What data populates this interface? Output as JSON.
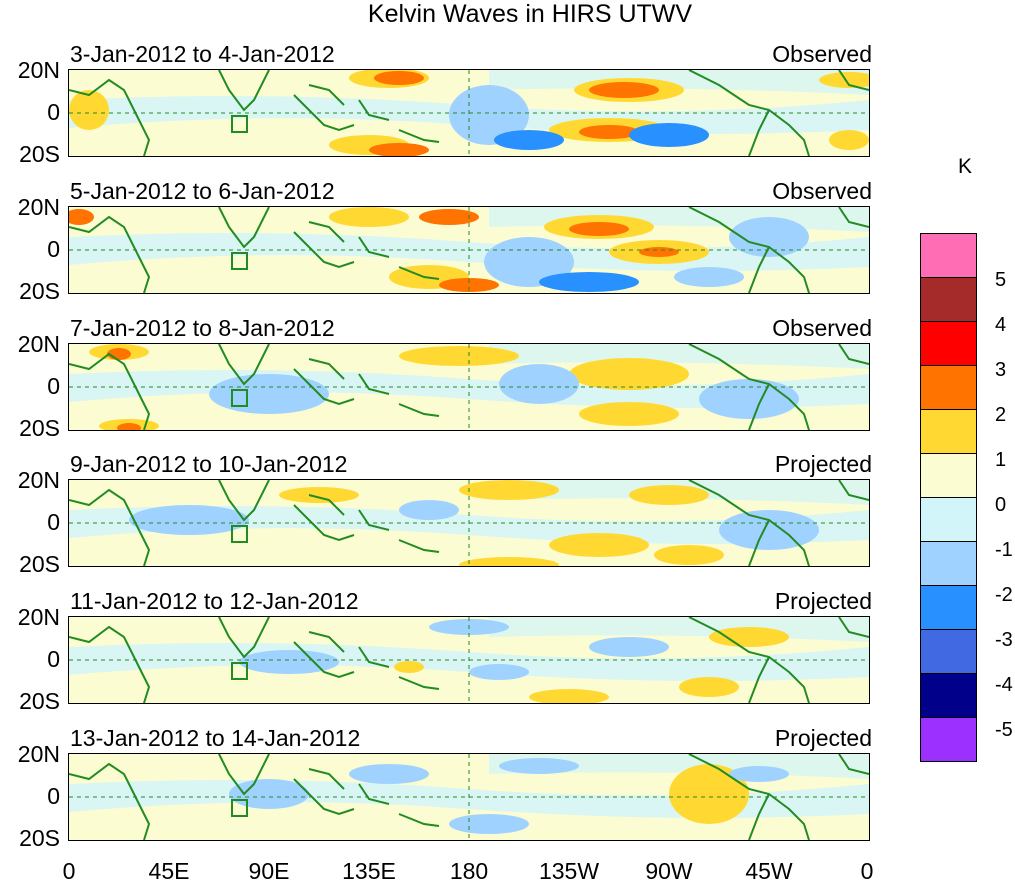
{
  "title": "Kelvin Waves in HIRS UTWV",
  "panels": [
    {
      "dates": "3-Jan-2012 to 4-Jan-2012",
      "type": "Observed"
    },
    {
      "dates": "5-Jan-2012 to 6-Jan-2012",
      "type": "Observed"
    },
    {
      "dates": "7-Jan-2012 to 8-Jan-2012",
      "type": "Observed"
    },
    {
      "dates": "9-Jan-2012 to 10-Jan-2012",
      "type": "Projected"
    },
    {
      "dates": "11-Jan-2012 to 12-Jan-2012",
      "type": "Projected"
    },
    {
      "dates": "13-Jan-2012 to 14-Jan-2012",
      "type": "Projected"
    }
  ],
  "lat_ticks": [
    "20N",
    "0",
    "20S"
  ],
  "lon_ticks": [
    "0",
    "45E",
    "90E",
    "135E",
    "180",
    "135W",
    "90W",
    "45W",
    "0"
  ],
  "colorbar": {
    "unit": "K",
    "labels": [
      "5",
      "4",
      "3",
      "2",
      "1",
      "0",
      "-1",
      "-2",
      "-3",
      "-4",
      "-5"
    ],
    "colors": [
      "#ff6eb4",
      "#a52a2a",
      "#ff0000",
      "#ff7300",
      "#ffd932",
      "#fcfcd2",
      "#d2f5fa",
      "#a0d2ff",
      "#2891ff",
      "#4169e1",
      "#00008b",
      "#9b30ff"
    ]
  }
}
